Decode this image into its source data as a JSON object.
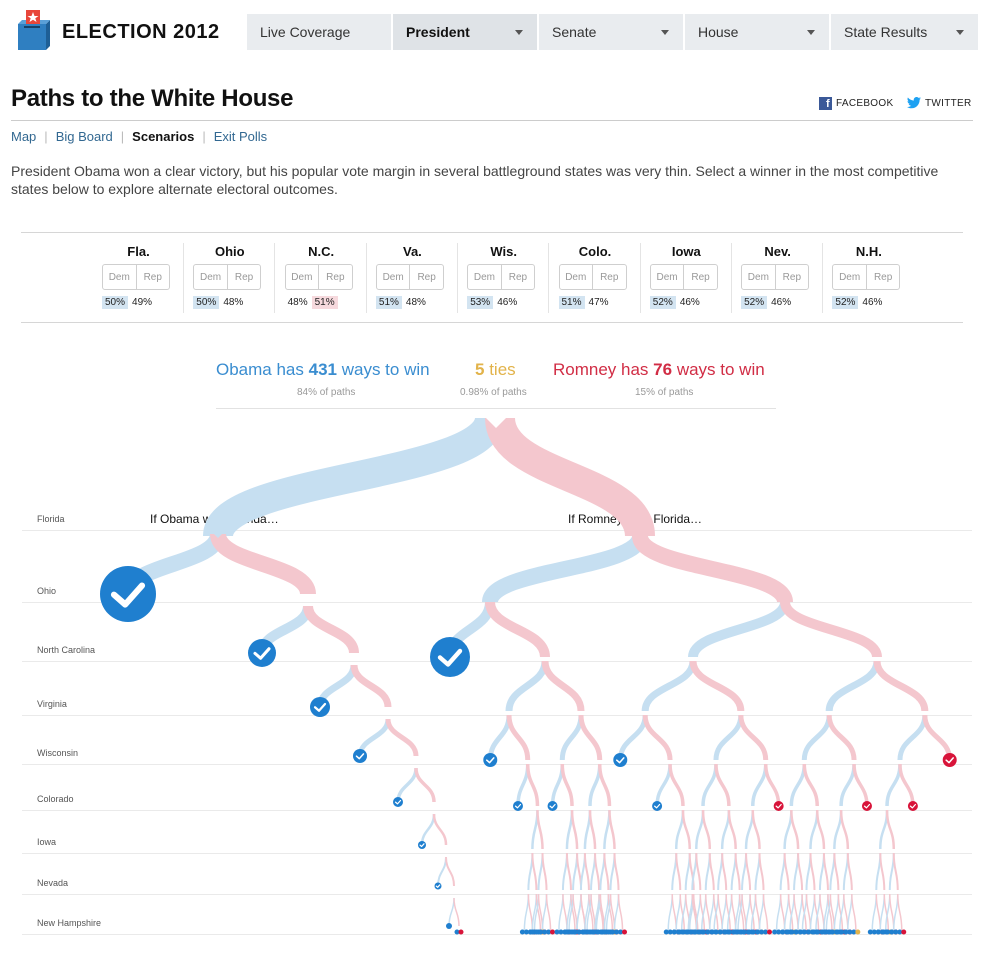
{
  "header": {
    "brand": "ELECTION 2012",
    "nav": [
      {
        "label": "Live Coverage",
        "active": false,
        "caret": false
      },
      {
        "label": "President",
        "active": true,
        "caret": true
      },
      {
        "label": "Senate",
        "active": false,
        "caret": true
      },
      {
        "label": "House",
        "active": false,
        "caret": true
      },
      {
        "label": "State Results",
        "active": false,
        "caret": true
      }
    ]
  },
  "page": {
    "title": "Paths to the White House",
    "share_facebook": "FACEBOOK",
    "share_twitter": "TWITTER",
    "subnav": [
      "Map",
      "Big Board",
      "Scenarios",
      "Exit Polls"
    ],
    "subnav_current": "Scenarios",
    "intro": "President Obama won a clear victory, but his popular vote margin in several battleground states was very thin. Select a winner in the most competitive states below to explore alternate electoral outcomes."
  },
  "states": [
    {
      "name": "Fla.",
      "dem": "50%",
      "rep": "49%",
      "winner": "dem"
    },
    {
      "name": "Ohio",
      "dem": "50%",
      "rep": "48%",
      "winner": "dem"
    },
    {
      "name": "N.C.",
      "dem": "48%",
      "rep": "51%",
      "winner": "rep"
    },
    {
      "name": "Va.",
      "dem": "51%",
      "rep": "48%",
      "winner": "dem"
    },
    {
      "name": "Wis.",
      "dem": "53%",
      "rep": "46%",
      "winner": "dem"
    },
    {
      "name": "Colo.",
      "dem": "51%",
      "rep": "47%",
      "winner": "dem"
    },
    {
      "name": "Iowa",
      "dem": "52%",
      "rep": "46%",
      "winner": "dem"
    },
    {
      "name": "Nev.",
      "dem": "52%",
      "rep": "46%",
      "winner": "dem"
    },
    {
      "name": "N.H.",
      "dem": "52%",
      "rep": "46%",
      "winner": "dem"
    }
  ],
  "buttons": {
    "dem": "Dem",
    "rep": "Rep"
  },
  "summary": {
    "obama_prefix": "Obama has ",
    "obama_count": "431",
    "obama_suffix": " ways to win",
    "obama_pct": "84% of paths",
    "ties_count": "5",
    "ties_suffix": " ties",
    "ties_pct": "0.98% of paths",
    "romney_prefix": "Romney has ",
    "romney_count": "76",
    "romney_suffix": " ways to win",
    "romney_pct": "15% of paths"
  },
  "tree": {
    "rows": [
      "Florida",
      "Ohio",
      "North Carolina",
      "Virginia",
      "Wisconsin",
      "Colorado",
      "Iowa",
      "Nevada",
      "New Hampshire"
    ],
    "left_branch_label": "If Obama wins Florida…",
    "right_branch_label": "If Romney wins Florida…"
  },
  "colors": {
    "dem": "#1f7fcf",
    "rep": "#d8143a",
    "dem_path": "#c6dff1",
    "rep_path": "#f4c7ce",
    "tie": "#e2b34a"
  }
}
